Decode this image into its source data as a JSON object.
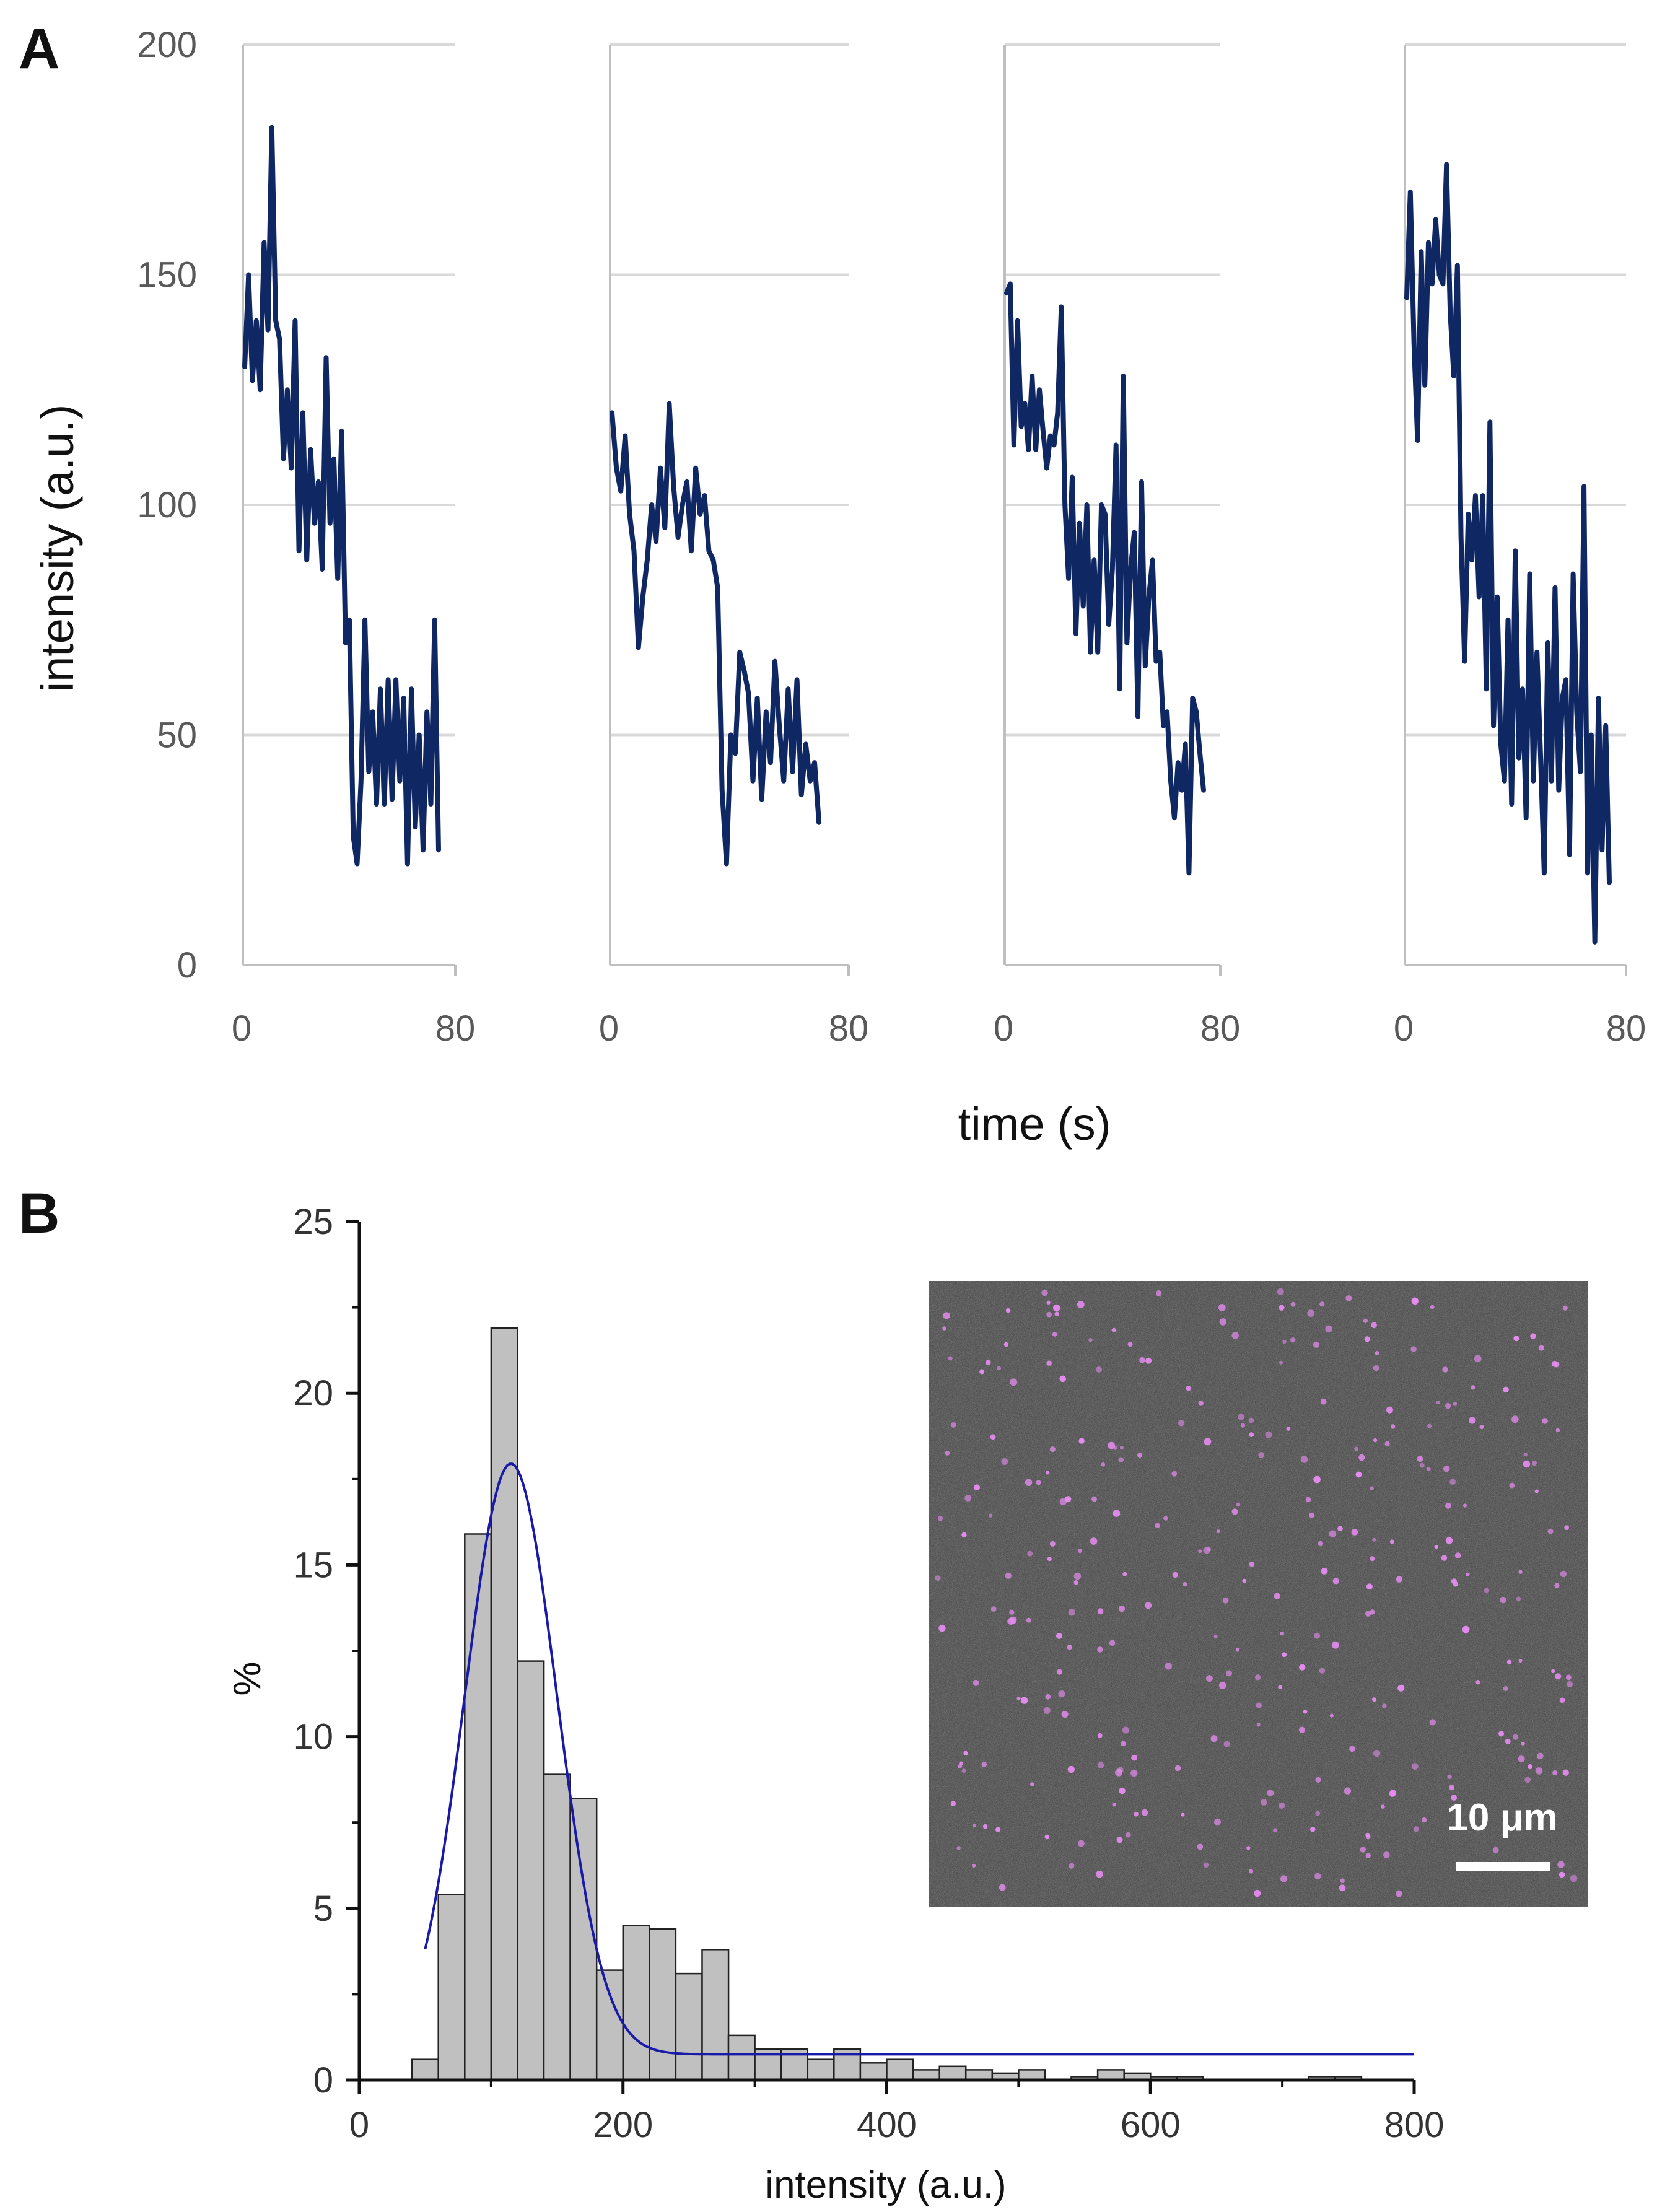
{
  "panel_labels": {
    "a": "A",
    "b": "B"
  },
  "colors": {
    "trace": "#0f2864",
    "grid": "#d9d9d9",
    "axisA": "#bfbfbf",
    "bar_fill": "#c0c0c0",
    "bar_edge": "#222222",
    "fit": "#1a1aa8",
    "inset_bg": "#3b3b3b",
    "inset_spot": "#e68cf0"
  },
  "chart_data": [
    {
      "type": "line",
      "panel": "A",
      "ylabel": "intensity (a.u.)",
      "xlabel": "time (s)",
      "ylim": [
        0,
        200
      ],
      "yticks": [
        "0",
        "50",
        "100",
        "150",
        "200"
      ],
      "xlim": [
        0,
        80
      ],
      "xtick_labels": [
        "0",
        "80"
      ],
      "grid": true,
      "series": [
        {
          "name": "trace 1",
          "values": [
            130,
            150,
            127,
            140,
            125,
            157,
            138,
            182,
            140,
            136,
            110,
            125,
            108,
            140,
            90,
            120,
            88,
            112,
            96,
            105,
            86,
            132,
            96,
            110,
            84,
            116,
            70,
            75,
            28,
            22,
            40,
            75,
            42,
            55,
            35,
            60,
            35,
            62,
            36,
            62,
            40,
            58,
            22,
            60,
            30,
            50,
            25,
            55,
            35,
            75,
            25
          ]
        },
        {
          "name": "trace 2",
          "values": [
            120,
            108,
            103,
            115,
            98,
            90,
            69,
            80,
            88,
            100,
            92,
            108,
            95,
            122,
            104,
            93,
            100,
            105,
            90,
            108,
            98,
            102,
            90,
            88,
            82,
            38,
            22,
            50,
            46,
            68,
            64,
            59,
            40,
            58,
            36,
            55,
            44,
            66,
            52,
            40,
            60,
            42,
            62,
            37,
            48,
            40,
            44,
            31
          ]
        },
        {
          "name": "trace 3",
          "values": [
            146,
            148,
            113,
            140,
            117,
            122,
            112,
            128,
            112,
            125,
            116,
            108,
            115,
            113,
            120,
            143,
            100,
            84,
            106,
            72,
            96,
            78,
            100,
            68,
            88,
            68,
            100,
            98,
            74,
            86,
            113,
            60,
            128,
            70,
            86,
            94,
            54,
            105,
            65,
            80,
            88,
            66,
            68,
            52,
            55,
            40,
            32,
            44,
            38,
            48,
            20,
            58,
            55,
            46,
            38
          ]
        },
        {
          "name": "trace 4",
          "values": [
            145,
            168,
            135,
            114,
            155,
            126,
            157,
            148,
            162,
            150,
            148,
            174,
            142,
            128,
            152,
            93,
            66,
            98,
            88,
            102,
            80,
            102,
            60,
            118,
            52,
            80,
            48,
            40,
            75,
            35,
            90,
            45,
            60,
            32,
            85,
            40,
            68,
            45,
            20,
            70,
            40,
            82,
            38,
            58,
            62,
            24,
            85,
            55,
            42,
            104,
            20,
            50,
            5,
            58,
            25,
            52,
            18
          ]
        }
      ]
    },
    {
      "type": "bar",
      "panel": "B",
      "ylabel": "%",
      "xlabel": "intensity (a.u.)",
      "xlim": [
        0,
        800
      ],
      "ylim": [
        0,
        25
      ],
      "xtick_labels": [
        "0",
        "200",
        "400",
        "600",
        "800"
      ],
      "ytick_labels": [
        "0",
        "5",
        "10",
        "15",
        "20",
        "25"
      ],
      "bin_width": 20,
      "bin_starts": [
        40,
        60,
        80,
        100,
        120,
        140,
        160,
        180,
        200,
        220,
        240,
        260,
        280,
        300,
        320,
        340,
        360,
        380,
        400,
        420,
        440,
        460,
        480,
        500,
        520,
        540,
        560,
        580,
        600,
        620,
        640,
        660,
        680,
        700,
        720,
        740
      ],
      "values": [
        0.6,
        5.4,
        15.9,
        21.9,
        12.2,
        8.9,
        8.2,
        3.2,
        4.5,
        4.4,
        3.1,
        3.8,
        1.3,
        0.9,
        0.9,
        0.6,
        0.9,
        0.5,
        0.6,
        0.3,
        0.4,
        0.3,
        0.2,
        0.3,
        0.0,
        0.1,
        0.3,
        0.2,
        0.1,
        0.1,
        0.0,
        0.0,
        0.0,
        0.0,
        0.1,
        0.1
      ],
      "fit": {
        "type": "gaussian",
        "center": 115,
        "sigma": 35,
        "amplitude": 17.2,
        "offset": 0.75,
        "x_start": 50,
        "x_end": 800
      },
      "inset": {
        "scale_bar_label": "10 μm"
      }
    }
  ]
}
